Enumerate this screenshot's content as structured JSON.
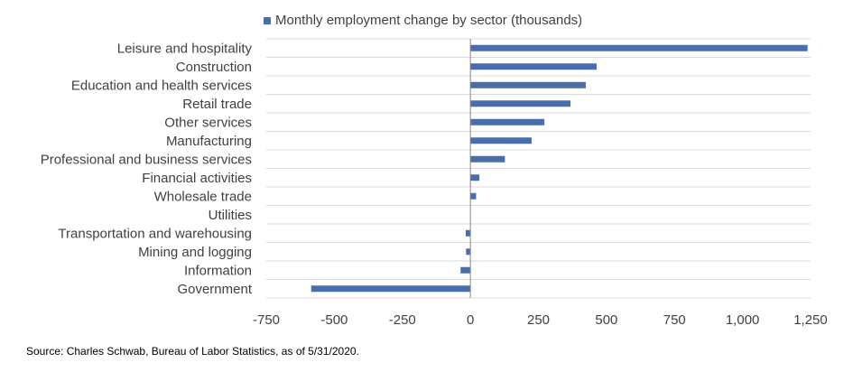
{
  "chart_data": {
    "type": "bar",
    "orientation": "horizontal",
    "categories": [
      "Leisure and hospitality",
      "Construction",
      "Education and health services",
      "Retail trade",
      "Other services",
      "Manufacturing",
      "Professional and business services",
      "Financial activities",
      "Wholesale trade",
      "Utilities",
      "Transportation and warehousing",
      "Mining and logging",
      "Information",
      "Government"
    ],
    "series": [
      {
        "name": "Monthly employment change by sector (thousands)",
        "values": [
          1239,
          464,
          424,
          368,
          272,
          225,
          127,
          33,
          21,
          0,
          -17,
          -16,
          -36,
          -585
        ]
      }
    ],
    "xlim": [
      -750,
      1250
    ],
    "xticks": [
      -750,
      -500,
      -250,
      0,
      250,
      500,
      750,
      1000,
      1250
    ],
    "xtick_labels": [
      "-750",
      "-500",
      "-250",
      "0",
      "250",
      "500",
      "750",
      "1,000",
      "1,250"
    ],
    "grid": true,
    "legend_position": "top",
    "bar_color": "#4a6eaa",
    "grid_color": "#d9d9d9",
    "axis_color": "#868686"
  },
  "source": "Source: Charles Schwab, Bureau of Labor Statistics, as of 5/31/2020."
}
